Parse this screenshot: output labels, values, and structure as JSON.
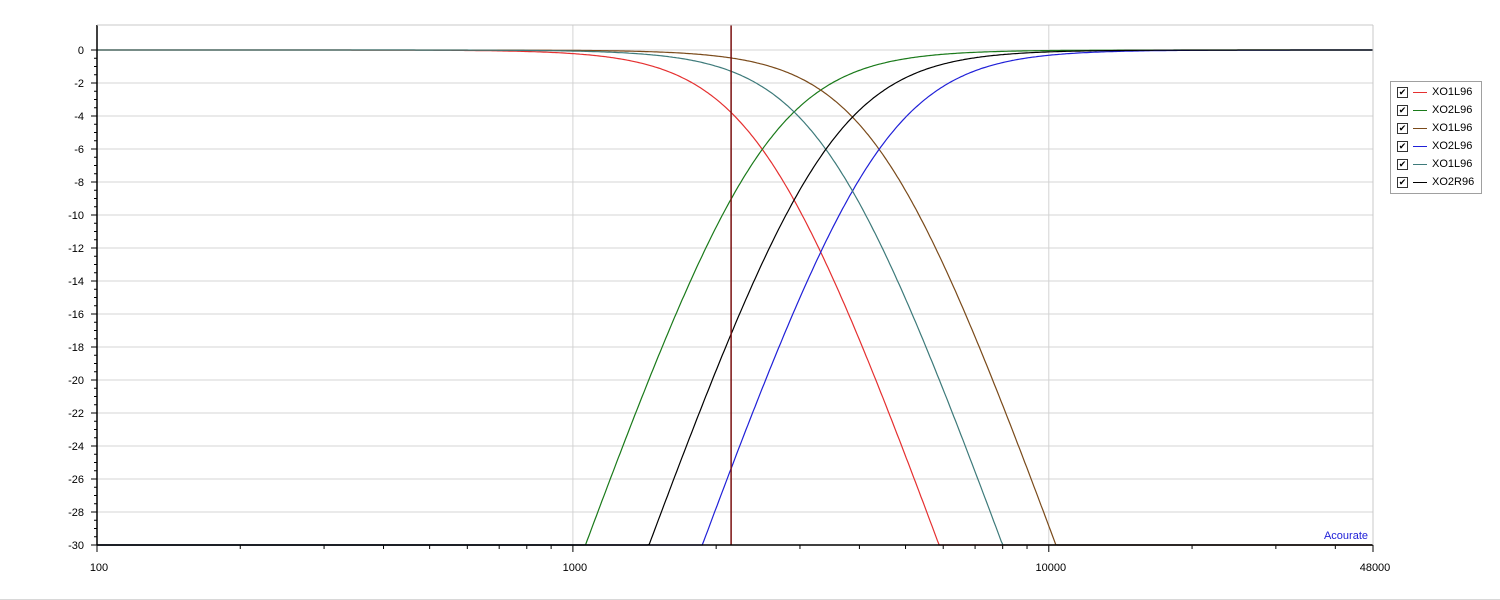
{
  "chart_data": {
    "type": "line",
    "x_scale": "log",
    "xlim": [
      100,
      48000
    ],
    "ylim": [
      -30,
      0
    ],
    "x_tick_labels": [
      "100",
      "1000",
      "10000",
      "48000"
    ],
    "x_ticks": [
      100,
      1000,
      10000,
      48000
    ],
    "y_ticks": [
      0,
      -2,
      -4,
      -6,
      -8,
      -10,
      -12,
      -14,
      -16,
      -18,
      -20,
      -22,
      -24,
      -26,
      -28,
      -30
    ],
    "grid": true,
    "legend_position": "right",
    "cursor_x": 2150,
    "watermark": "Acourate",
    "series": [
      {
        "name": "XO1L96",
        "color": "#e53030",
        "type": "lowpass",
        "fc": 2500,
        "order": 4
      },
      {
        "name": "XO2L96",
        "color": "#1a7a1a",
        "type": "highpass",
        "fc": 2500,
        "order": 4
      },
      {
        "name": "XO1L96",
        "color": "#7a4a1a",
        "type": "lowpass",
        "fc": 4400,
        "order": 4
      },
      {
        "name": "XO2L96",
        "color": "#2020d8",
        "type": "highpass",
        "fc": 4400,
        "order": 4
      },
      {
        "name": "XO1L96",
        "color": "#3d7a7a",
        "type": "lowpass",
        "fc": 3400,
        "order": 4
      },
      {
        "name": "XO2R96",
        "color": "#000000",
        "type": "highpass",
        "fc": 3400,
        "order": 4
      }
    ],
    "cursor_color": "#7a1010"
  },
  "legend": {
    "items": [
      {
        "label": "XO1L96",
        "checked": "✔",
        "color": "#e53030"
      },
      {
        "label": "XO2L96",
        "checked": "✔",
        "color": "#1a7a1a"
      },
      {
        "label": "XO1L96",
        "checked": "✔",
        "color": "#7a4a1a"
      },
      {
        "label": "XO2L96",
        "checked": "✔",
        "color": "#2020d8"
      },
      {
        "label": "XO1L96",
        "checked": "✔",
        "color": "#3d7a7a"
      },
      {
        "label": "XO2R96",
        "checked": "✔",
        "color": "#000000"
      }
    ]
  }
}
